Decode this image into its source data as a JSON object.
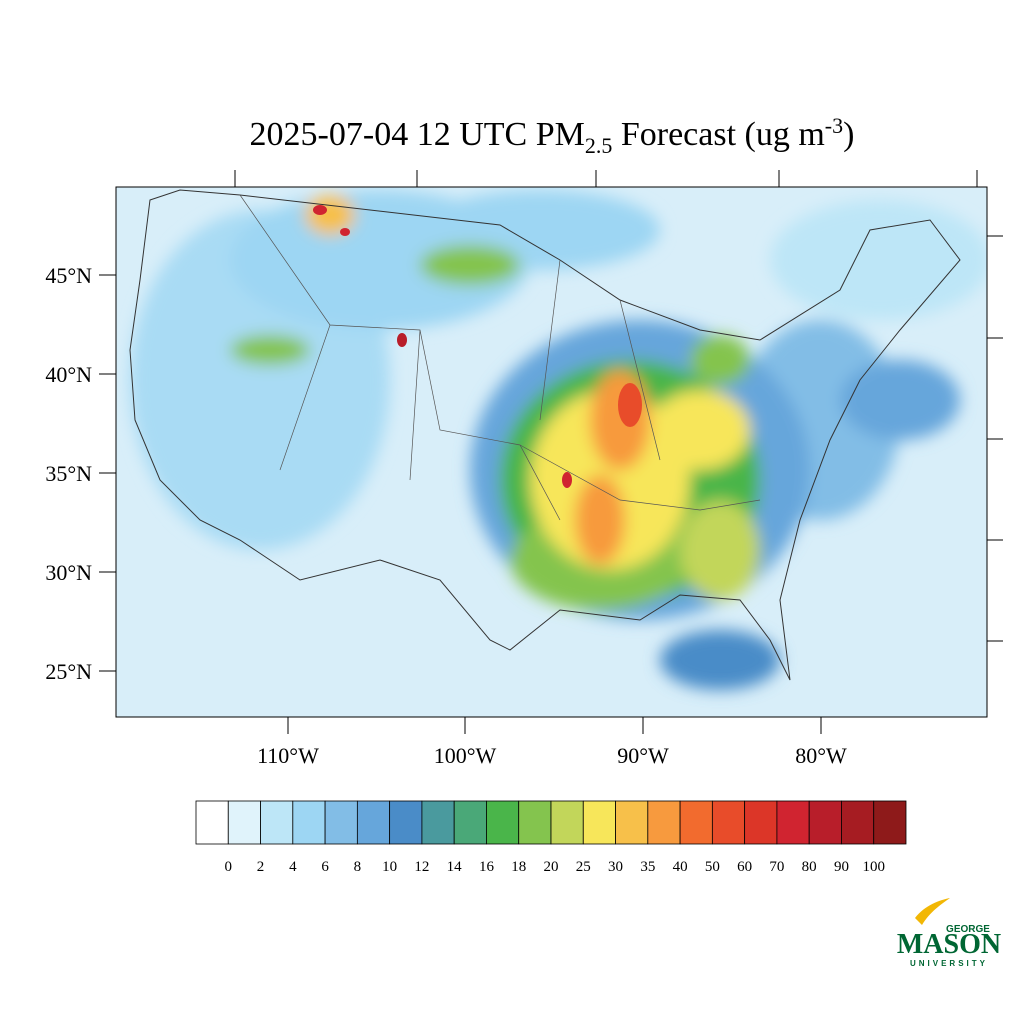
{
  "title": {
    "main": "2025-07-04 12 UTC PM",
    "subscript": "2.5",
    "middle": " Forecast (ug m",
    "superscript": "-3",
    "end": ")"
  },
  "latitude_labels": [
    "45°N",
    "40°N",
    "35°N",
    "30°N",
    "25°N"
  ],
  "longitude_labels": [
    "110°W",
    "100°W",
    "90°W",
    "80°W"
  ],
  "colorbar": {
    "levels": [
      "0",
      "2",
      "4",
      "6",
      "8",
      "10",
      "12",
      "14",
      "16",
      "18",
      "20",
      "25",
      "30",
      "35",
      "40",
      "50",
      "60",
      "70",
      "80",
      "90",
      "100"
    ],
    "colors": [
      "#ffffff",
      "#e0f3fb",
      "#bde6f7",
      "#9dd6f3",
      "#82bde6",
      "#66a6db",
      "#4a8cc8",
      "#4a9a9e",
      "#4aa878",
      "#4ab54a",
      "#84c44e",
      "#c2d65a",
      "#f7e65a",
      "#f7c04a",
      "#f79a3e",
      "#f26b2e",
      "#e84c2a",
      "#dc3628",
      "#d02430",
      "#b81e2a",
      "#a61c22",
      "#8e1a1a"
    ]
  },
  "logo": {
    "top": "GEORGE",
    "main": "MASON",
    "bottom": "UNIVERSITY"
  }
}
